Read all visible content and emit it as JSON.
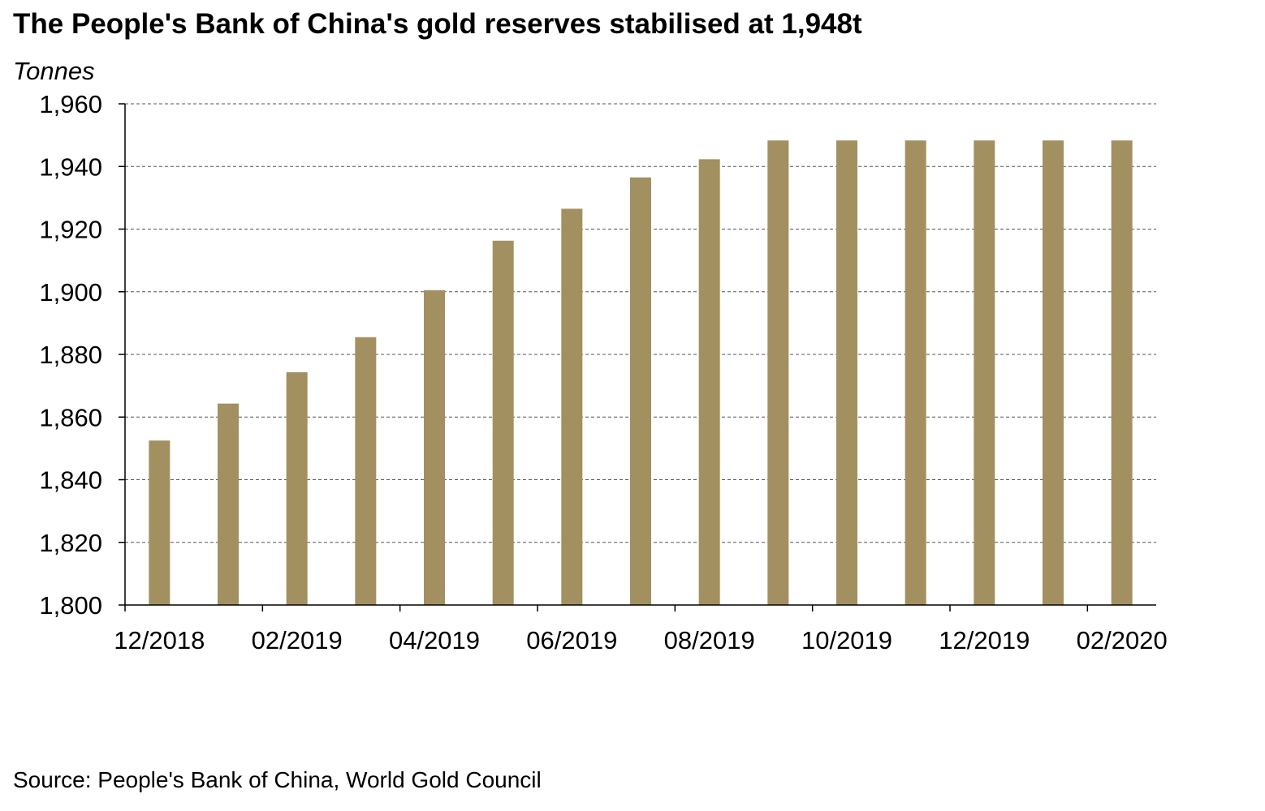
{
  "chart_data": {
    "type": "bar",
    "title": "The People's Bank of China's gold reserves stabilised at 1,948t",
    "ylabel": "Tonnes",
    "xlabel": "",
    "categories": [
      "12/2018",
      "01/2019",
      "02/2019",
      "03/2019",
      "04/2019",
      "05/2019",
      "06/2019",
      "07/2019",
      "08/2019",
      "09/2019",
      "10/2019",
      "11/2019",
      "12/2019",
      "01/2020",
      "02/2020"
    ],
    "x_tick_labels": [
      "12/2018",
      "02/2019",
      "04/2019",
      "06/2019",
      "08/2019",
      "10/2019",
      "12/2019",
      "02/2020"
    ],
    "values": [
      1852.5,
      1864.3,
      1874.3,
      1885.5,
      1900.5,
      1916.3,
      1926.5,
      1936.5,
      1942.3,
      1948.3,
      1948.3,
      1948.3,
      1948.3,
      1948.3,
      1948.3
    ],
    "ylim": [
      1800,
      1960
    ],
    "y_ticks": [
      1800,
      1820,
      1840,
      1860,
      1880,
      1900,
      1920,
      1940,
      1960
    ],
    "y_tick_labels": [
      "1,800",
      "1,820",
      "1,840",
      "1,860",
      "1,880",
      "1,900",
      "1,920",
      "1,940",
      "1,960"
    ],
    "grid": true,
    "grid_style": "dashed",
    "bar_color": "#a39060",
    "source": "Source: People's Bank of China, World Gold Council"
  }
}
